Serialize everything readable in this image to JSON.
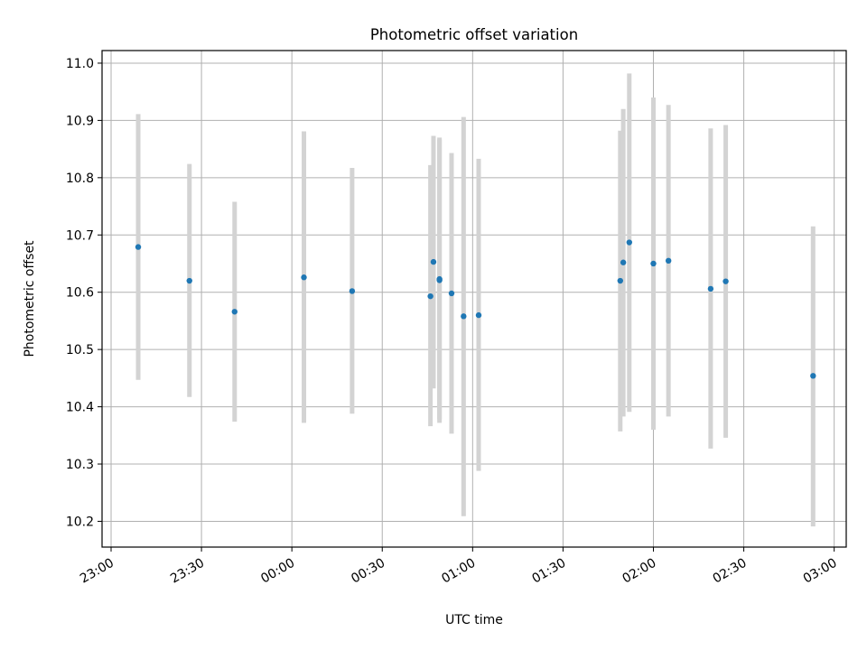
{
  "chart_data": {
    "type": "scatter",
    "title": "Photometric offset variation",
    "xlabel": "UTC time",
    "ylabel": "Photometric offset",
    "x_tick_labels": [
      "23:00",
      "23:30",
      "00:00",
      "00:30",
      "01:00",
      "01:30",
      "02:00",
      "02:30",
      "03:00"
    ],
    "y_tick_labels": [
      "10.2",
      "10.3",
      "10.4",
      "10.5",
      "10.6",
      "10.7",
      "10.8",
      "10.9",
      "11.0"
    ],
    "y_ticks": [
      10.2,
      10.3,
      10.4,
      10.5,
      10.6,
      10.7,
      10.8,
      10.9,
      11.0
    ],
    "xlim": [
      "22:57",
      "03:04"
    ],
    "ylim": [
      10.155,
      11.022
    ],
    "grid": true,
    "colors": {
      "point": "#1f77b4",
      "errorbar": "#d3d3d3"
    },
    "points": [
      {
        "x": "23:09",
        "y": 10.679,
        "low": 10.447,
        "high": 10.911
      },
      {
        "x": "23:26",
        "y": 10.62,
        "low": 10.417,
        "high": 10.824
      },
      {
        "x": "23:41",
        "y": 10.566,
        "low": 10.374,
        "high": 10.758
      },
      {
        "x": "00:04",
        "y": 10.626,
        "low": 10.372,
        "high": 10.881
      },
      {
        "x": "00:20",
        "y": 10.602,
        "low": 10.388,
        "high": 10.817
      },
      {
        "x": "00:46",
        "y": 10.593,
        "low": 10.366,
        "high": 10.822
      },
      {
        "x": "00:47",
        "y": 10.653,
        "low": 10.432,
        "high": 10.873
      },
      {
        "x": "00:49",
        "y": 10.621,
        "low": 10.372,
        "high": 10.87
      },
      {
        "x": "00:49",
        "y": 10.623,
        "low": 10.378,
        "high": 10.867
      },
      {
        "x": "00:53",
        "y": 10.598,
        "low": 10.353,
        "high": 10.843
      },
      {
        "x": "00:57",
        "y": 10.558,
        "low": 10.209,
        "high": 10.906
      },
      {
        "x": "01:02",
        "y": 10.56,
        "low": 10.288,
        "high": 10.833
      },
      {
        "x": "01:49",
        "y": 10.62,
        "low": 10.357,
        "high": 10.882
      },
      {
        "x": "01:50",
        "y": 10.652,
        "low": 10.383,
        "high": 10.92
      },
      {
        "x": "01:52",
        "y": 10.687,
        "low": 10.391,
        "high": 10.982
      },
      {
        "x": "02:00",
        "y": 10.65,
        "low": 10.36,
        "high": 10.94
      },
      {
        "x": "02:05",
        "y": 10.655,
        "low": 10.383,
        "high": 10.927
      },
      {
        "x": "02:19",
        "y": 10.606,
        "low": 10.327,
        "high": 10.886
      },
      {
        "x": "02:24",
        "y": 10.619,
        "low": 10.346,
        "high": 10.892
      },
      {
        "x": "02:53",
        "y": 10.454,
        "low": 10.191,
        "high": 10.715
      }
    ]
  }
}
